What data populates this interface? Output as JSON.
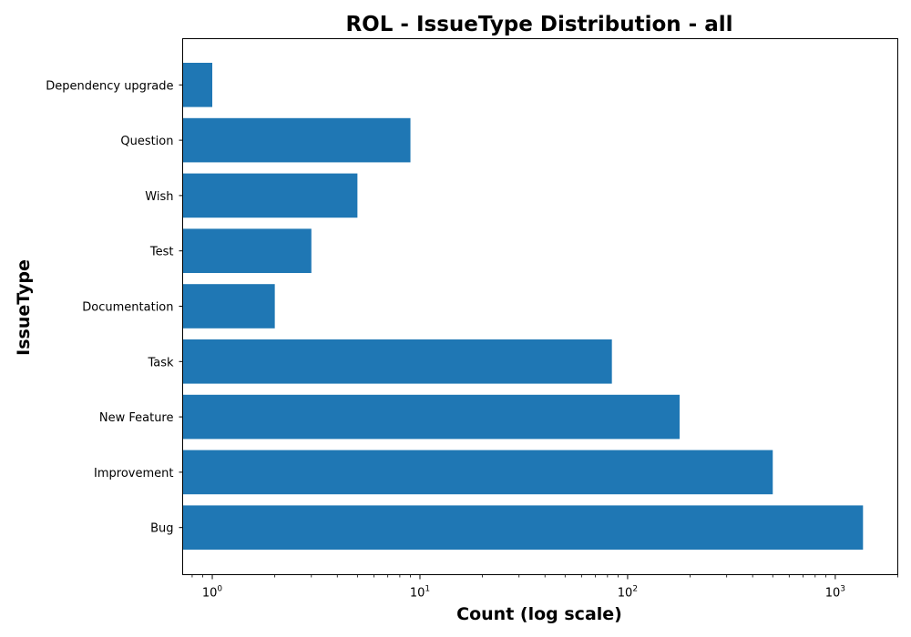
{
  "chart_data": {
    "type": "bar",
    "orientation": "horizontal",
    "title": "ROL - IssueType Distribution - all",
    "xlabel": "Count (log scale)",
    "ylabel": "IssueType",
    "x_scale": "log",
    "xlim": [
      0.72,
      2000
    ],
    "x_ticks": [
      {
        "value": 1,
        "base": "10",
        "exp": "0"
      },
      {
        "value": 10,
        "base": "10",
        "exp": "1"
      },
      {
        "value": 100,
        "base": "10",
        "exp": "2"
      },
      {
        "value": 1000,
        "base": "10",
        "exp": "3"
      }
    ],
    "categories": [
      "Dependency upgrade",
      "Question",
      "Wish",
      "Test",
      "Documentation",
      "Task",
      "New Feature",
      "Improvement",
      "Bug"
    ],
    "values": [
      1,
      9,
      5,
      3,
      2,
      84,
      178,
      500,
      1360
    ],
    "bar_color": "#1f77b4",
    "grid": false,
    "legend": "none"
  }
}
